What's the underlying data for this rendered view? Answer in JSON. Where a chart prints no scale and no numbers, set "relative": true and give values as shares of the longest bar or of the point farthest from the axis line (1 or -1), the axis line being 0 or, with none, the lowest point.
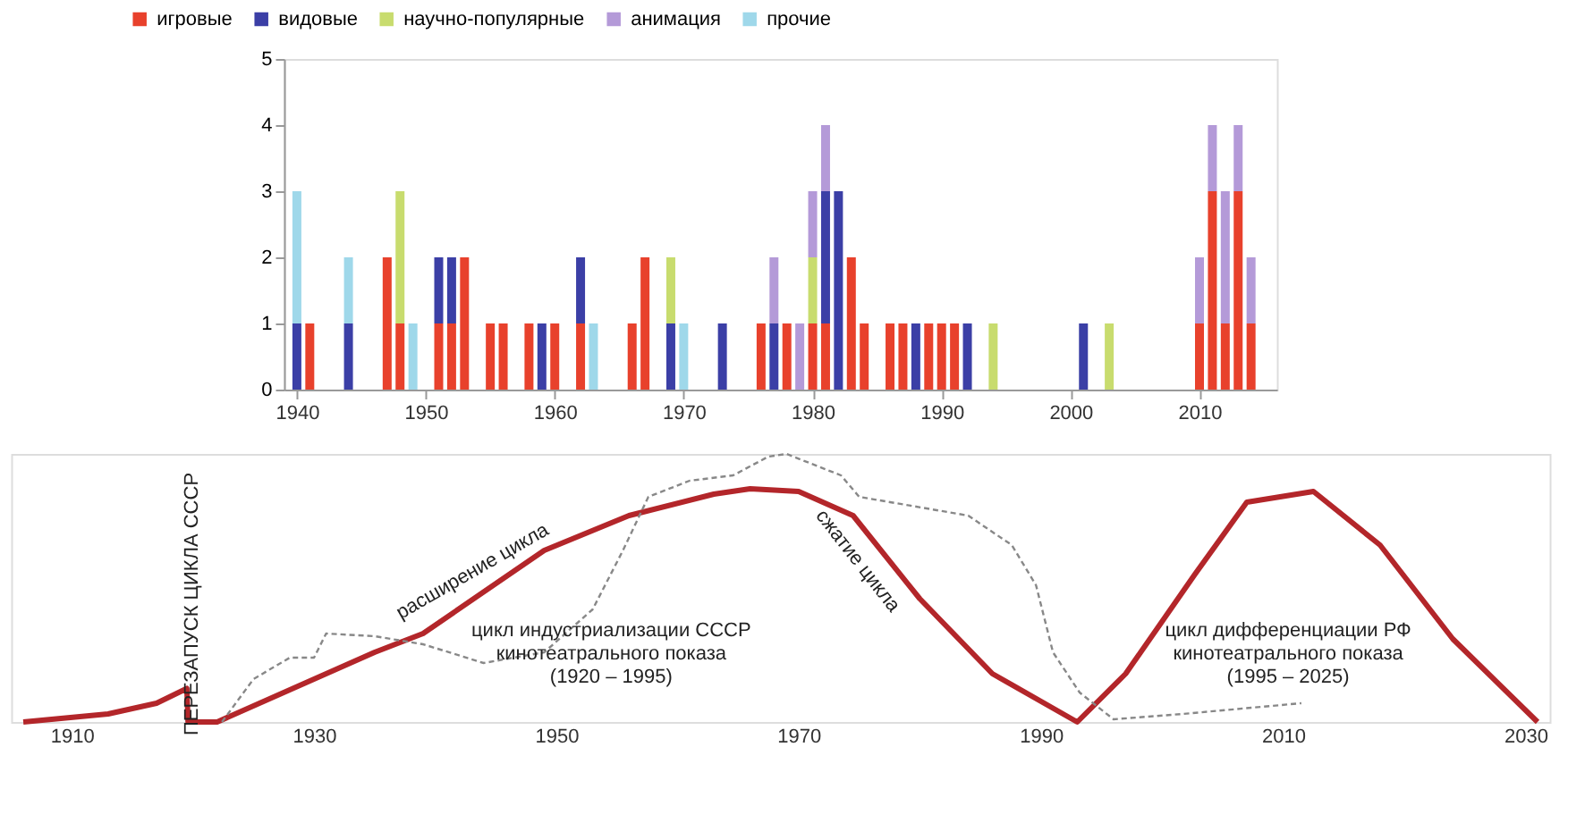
{
  "chart_data": [
    {
      "type": "bar",
      "stacked": true,
      "legend": "top",
      "grid": false,
      "x": [
        1940,
        1941,
        1944,
        1947,
        1948,
        1949,
        1951,
        1952,
        1953,
        1955,
        1956,
        1958,
        1959,
        1960,
        1962,
        1963,
        1966,
        1967,
        1969,
        1970,
        1973,
        1976,
        1977,
        1978,
        1979,
        1980,
        1981,
        1982,
        1983,
        1984,
        1986,
        1987,
        1988,
        1989,
        1990,
        1991,
        1992,
        1994,
        2001,
        2003,
        2010,
        2011,
        2012,
        2013,
        2014
      ],
      "xlim": [
        1939,
        2016
      ],
      "xticks": [
        1940,
        1950,
        1960,
        1970,
        1980,
        1990,
        2000,
        2010
      ],
      "ylim": [
        0,
        5
      ],
      "yticks": [
        0,
        1,
        2,
        3,
        4,
        5
      ],
      "series": [
        {
          "name": "игровые",
          "color": "#e8412c",
          "values": [
            null,
            1,
            null,
            2,
            1,
            null,
            1,
            1,
            2,
            1,
            1,
            1,
            null,
            1,
            1,
            null,
            1,
            2,
            null,
            null,
            null,
            1,
            null,
            1,
            null,
            1,
            1,
            null,
            2,
            1,
            1,
            1,
            null,
            1,
            1,
            1,
            null,
            null,
            null,
            null,
            1,
            3,
            1,
            3,
            1
          ]
        },
        {
          "name": "видовые",
          "color": "#3b3fa6",
          "values": [
            1,
            null,
            1,
            null,
            null,
            null,
            1,
            1,
            null,
            null,
            null,
            null,
            1,
            null,
            1,
            null,
            null,
            null,
            1,
            null,
            1,
            null,
            1,
            null,
            null,
            null,
            2,
            3,
            null,
            null,
            null,
            null,
            1,
            null,
            null,
            null,
            1,
            null,
            1,
            null,
            null,
            null,
            null,
            null,
            null
          ]
        },
        {
          "name": "научно-популярные",
          "color": "#c8dc6e",
          "values": [
            null,
            null,
            null,
            null,
            2,
            null,
            null,
            null,
            null,
            null,
            null,
            null,
            null,
            null,
            null,
            null,
            null,
            null,
            1,
            null,
            null,
            null,
            null,
            null,
            null,
            1,
            null,
            null,
            null,
            null,
            null,
            null,
            null,
            null,
            null,
            null,
            null,
            1,
            null,
            1,
            null,
            null,
            null,
            null,
            null
          ]
        },
        {
          "name": "анимация",
          "color": "#b49ad8",
          "values": [
            null,
            null,
            null,
            null,
            null,
            null,
            null,
            null,
            null,
            null,
            null,
            null,
            null,
            null,
            null,
            null,
            null,
            null,
            null,
            null,
            null,
            null,
            1,
            null,
            1,
            1,
            1,
            null,
            null,
            null,
            null,
            null,
            null,
            null,
            null,
            null,
            null,
            null,
            null,
            null,
            1,
            1,
            2,
            1,
            1
          ]
        },
        {
          "name": "прочие",
          "color": "#9fd8ea",
          "values": [
            2,
            null,
            1,
            null,
            null,
            1,
            null,
            null,
            null,
            null,
            null,
            null,
            null,
            null,
            null,
            1,
            null,
            null,
            null,
            1,
            null,
            null,
            null,
            null,
            null,
            null,
            null,
            null,
            null,
            null,
            null,
            null,
            null,
            null,
            null,
            null,
            null,
            null,
            null,
            null,
            null,
            null,
            null,
            null,
            null
          ]
        }
      ]
    },
    {
      "type": "line",
      "relative": true,
      "grid": false,
      "tick_labels": "x",
      "xlim": [
        1905,
        2032
      ],
      "xticks": [
        1910,
        1930,
        1950,
        1970,
        1990,
        2010,
        2030
      ],
      "series": [
        {
          "color": "#b3262a",
          "line_style": "solid",
          "x": [
            1906,
            1913,
            1917,
            1919.5,
            1919.6,
            1922,
            1935,
            1939,
            1949,
            1956,
            1963,
            1966,
            1970,
            1974.5,
            1980,
            1986,
            1993,
            1997,
            2002.7,
            2007,
            2012.5,
            2018,
            2024,
            2031
          ],
          "values": [
            0,
            0.03,
            0.07,
            0.125,
            0,
            0,
            0.26,
            0.33,
            0.64,
            0.77,
            0.85,
            0.87,
            0.86,
            0.77,
            0.46,
            0.18,
            0,
            0.18,
            0.55,
            0.82,
            0.86,
            0.66,
            0.31,
            0
          ]
        },
        {
          "type": "line",
          "color": "#888888",
          "line_style": "dashed",
          "x": [
            1922.4,
            1925,
            1928,
            1930,
            1931,
            1935,
            1939,
            1944,
            1949,
            1953,
            1955.5,
            1957.6,
            1961,
            1964.6,
            1967.5,
            1969,
            1973.5,
            1975,
            1984,
            1987.6,
            1989.6,
            1991,
            1993.2,
            1996,
            2001.7,
            2011.5
          ],
          "values": [
            0,
            0.16,
            0.24,
            0.24,
            0.33,
            0.32,
            0.29,
            0.22,
            0.26,
            0.42,
            0.64,
            0.84,
            0.9,
            0.92,
            0.99,
            1,
            0.92,
            0.84,
            0.77,
            0.66,
            0.51,
            0.26,
            0.11,
            0.01,
            0.03,
            0.07
          ]
        }
      ],
      "annotations": [
        "ПЕРЕЗАПУСК ЦИКЛА СССР",
        "расширение цикла",
        "сжатие цикла",
        "цикл индустриализации СССР\nкинотеатрального показа\n(1920 – 1995)",
        "цикл дифференциации РФ\nкинотеатрального показа\n(1995 – 2025)"
      ]
    }
  ]
}
